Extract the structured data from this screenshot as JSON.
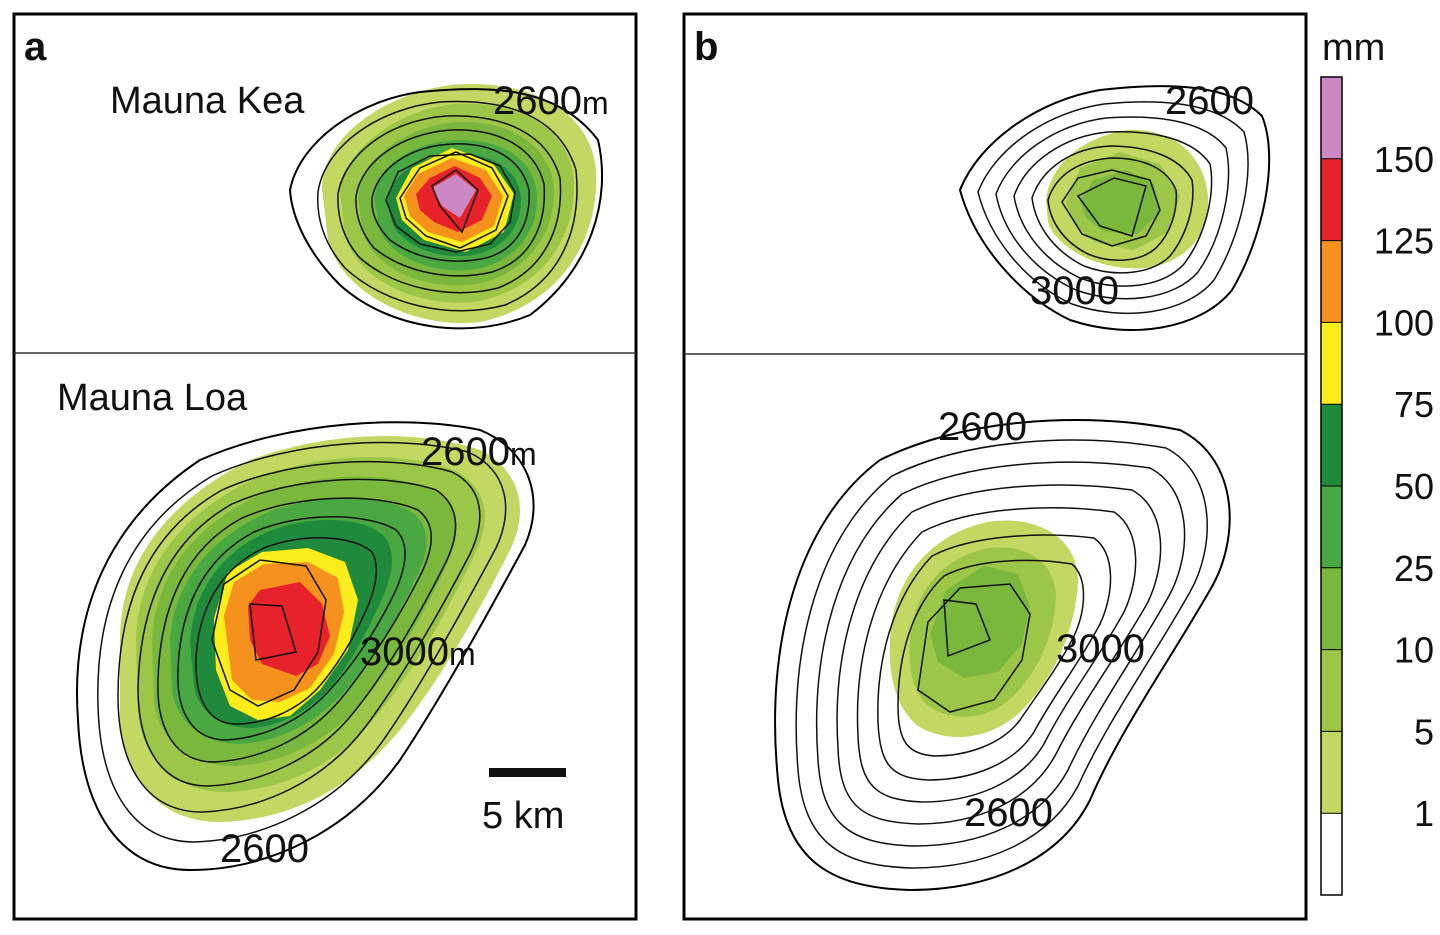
{
  "panels": [
    {
      "letter": "a",
      "top_map": {
        "mountain": "Mauna Kea",
        "labels": [
          {
            "value": "2600",
            "unit": "m"
          }
        ]
      },
      "bottom_map": {
        "mountain": "Mauna Loa",
        "labels": [
          {
            "value": "2600",
            "unit": "m"
          },
          {
            "value": "3000",
            "unit": "m"
          },
          {
            "value": "2600",
            "unit": ""
          }
        ],
        "scale_bar": "5 km"
      }
    },
    {
      "letter": "b",
      "top_map": {
        "labels": [
          {
            "value": "2600",
            "unit": ""
          },
          {
            "value": "3000",
            "unit": ""
          }
        ]
      },
      "bottom_map": {
        "labels": [
          {
            "value": "2600",
            "unit": ""
          },
          {
            "value": "3000",
            "unit": ""
          },
          {
            "value": "2600",
            "unit": ""
          }
        ]
      }
    }
  ],
  "colorbar": {
    "unit": "mm",
    "ticks": [
      "150",
      "125",
      "100",
      "75",
      "50",
      "25",
      "10",
      "5",
      "1"
    ],
    "colors": [
      "#cc88c4",
      "#e8222a",
      "#f5921e",
      "#fbec1c",
      "#1f8a3c",
      "#4aa842",
      "#79b83c",
      "#9cc648",
      "#c2d862",
      "#ffffff"
    ]
  },
  "shading": {
    "white": "#ffffff",
    "lvl1": "#c2d862",
    "lvl5": "#9cc648",
    "lvl10": "#79b83c",
    "lvl25": "#4aa842",
    "lvl50": "#1f8a3c",
    "lvl75": "#fbec1c",
    "lvl100": "#f5921e",
    "lvl125": "#e8222a",
    "lvl150": "#cc88c4"
  }
}
